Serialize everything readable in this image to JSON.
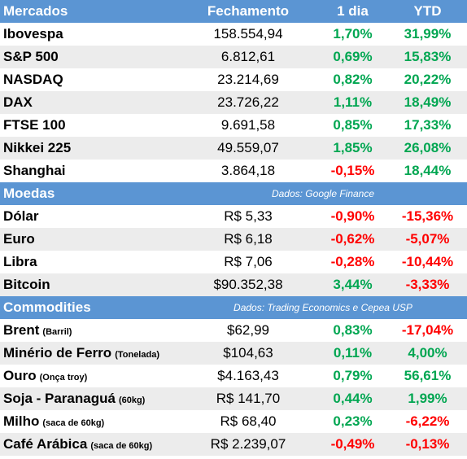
{
  "colors": {
    "header_bg": "#5b95d3",
    "positive": "#00a651",
    "negative": "#ff0000",
    "stripe": "#ececec"
  },
  "header": {
    "markets": "Mercados",
    "close": "Fechamento",
    "day": "1 dia",
    "ytd": "YTD"
  },
  "markets": [
    {
      "name": "Ibovespa",
      "close": "158.554,94",
      "day": "1,70%",
      "ytd": "31,99%"
    },
    {
      "name": "S&P 500",
      "close": "6.812,61",
      "day": "0,69%",
      "ytd": "15,83%"
    },
    {
      "name": "NASDAQ",
      "close": "23.214,69",
      "day": "0,82%",
      "ytd": "20,22%"
    },
    {
      "name": "DAX",
      "close": "23.726,22",
      "day": "1,11%",
      "ytd": "18,49%"
    },
    {
      "name": "FTSE 100",
      "close": "9.691,58",
      "day": "0,85%",
      "ytd": "17,33%"
    },
    {
      "name": "Nikkei 225",
      "close": "49.559,07",
      "day": "1,85%",
      "ytd": "26,08%"
    },
    {
      "name": "Shanghai",
      "close": "3.864,18",
      "day": "-0,15%",
      "ytd": "18,44%"
    }
  ],
  "currencies_header": {
    "title": "Moedas",
    "source": "Dados: Google Finance"
  },
  "currencies": [
    {
      "name": "Dólar",
      "close": "R$ 5,33",
      "day": "-0,90%",
      "ytd": "-15,36%"
    },
    {
      "name": "Euro",
      "close": "R$ 6,18",
      "day": "-0,62%",
      "ytd": "-5,07%"
    },
    {
      "name": "Libra",
      "close": "R$ 7,06",
      "day": "-0,28%",
      "ytd": "-10,44%"
    },
    {
      "name": "Bitcoin",
      "close": "$90.352,38",
      "day": "3,44%",
      "ytd": "-3,33%"
    }
  ],
  "commodities_header": {
    "title": "Commodities",
    "source": "Dados: Trading Economics e Cepea USP"
  },
  "commodities": [
    {
      "name": "Brent",
      "unit": "(Barril)",
      "close": "$62,99",
      "day": "0,83%",
      "ytd": "-17,04%"
    },
    {
      "name": "Minério de Ferro",
      "unit": "(Tonelada)",
      "close": "$104,63",
      "day": "0,11%",
      "ytd": "4,00%"
    },
    {
      "name": "Ouro",
      "unit": "(Onça troy)",
      "close": "$4.163,43",
      "day": "0,79%",
      "ytd": "56,61%"
    },
    {
      "name": "Soja - Paranaguá",
      "unit": "(60kg)",
      "close": "R$ 141,70",
      "day": "0,44%",
      "ytd": "1,99%"
    },
    {
      "name": "Milho",
      "unit": "(saca de 60kg)",
      "close": "R$ 68,40",
      "day": "0,23%",
      "ytd": "-6,22%"
    },
    {
      "name": "Café Arábica",
      "unit": "(saca de 60kg)",
      "close": "R$ 2.239,07",
      "day": "-0,49%",
      "ytd": "-0,13%"
    }
  ]
}
